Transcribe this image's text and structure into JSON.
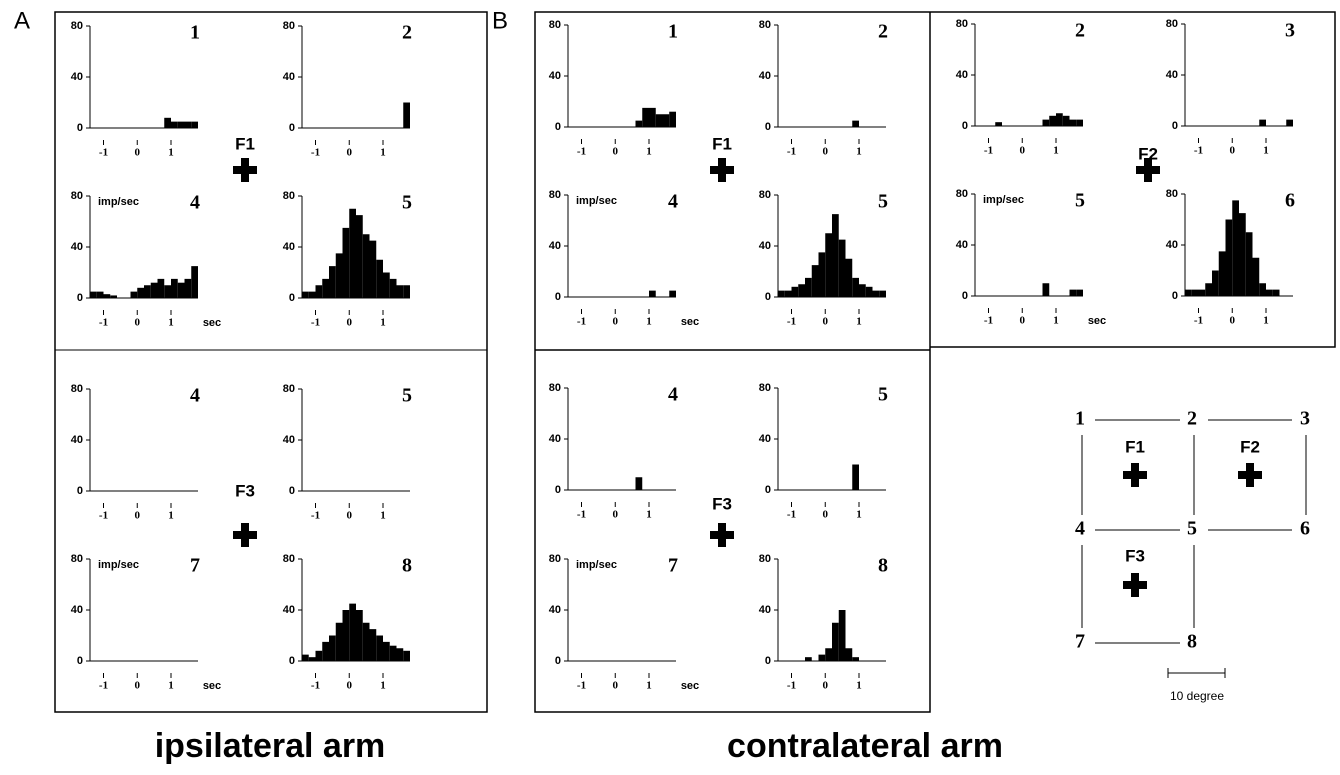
{
  "labels": [
    "A",
    "B"
  ],
  "captions": [
    "ipsilateral arm",
    "contralateral arm"
  ],
  "fixations": [
    "F1",
    "F3",
    "F1",
    "F3",
    "F2"
  ],
  "diagram": {
    "nodes": [
      "1",
      "2",
      "3",
      "4",
      "5",
      "6",
      "7",
      "8"
    ],
    "fixations": [
      "F1",
      "F2",
      "F3"
    ],
    "scale": "10 degree"
  },
  "chart_data": [
    {
      "type": "histogram",
      "title": "1",
      "color": "#000000",
      "xlim": [
        -1.4,
        1.8
      ],
      "ylim": [
        0,
        80
      ],
      "xticks": [
        -1,
        0,
        1
      ],
      "yticks": [
        0,
        40,
        80
      ],
      "bins": [
        -1.4,
        -1.2,
        -1.0,
        -0.8,
        -0.6,
        -0.4,
        -0.2,
        0,
        0.2,
        0.4,
        0.6,
        0.8,
        1.0,
        1.2,
        1.4,
        1.6,
        1.8
      ],
      "values": [
        0,
        0,
        0,
        0,
        0,
        0,
        0,
        0,
        0,
        0,
        0,
        8,
        5,
        5,
        5,
        5
      ]
    },
    {
      "type": "histogram",
      "title": "2",
      "color": "#000000",
      "xlim": [
        -1.4,
        1.8
      ],
      "ylim": [
        0,
        80
      ],
      "xticks": [
        -1,
        0,
        1
      ],
      "yticks": [
        0,
        40,
        80
      ],
      "bins": [
        -1.4,
        -1.2,
        -1.0,
        -0.8,
        -0.6,
        -0.4,
        -0.2,
        0,
        0.2,
        0.4,
        0.6,
        0.8,
        1.0,
        1.2,
        1.4,
        1.6,
        1.8
      ],
      "values": [
        0,
        0,
        0,
        0,
        0,
        0,
        0,
        0,
        0,
        0,
        0,
        0,
        0,
        0,
        0,
        20
      ]
    },
    {
      "type": "histogram",
      "title": "4",
      "ylabel": "imp/sec",
      "xlabel": "sec",
      "color": "#000000",
      "xlim": [
        -1.4,
        1.8
      ],
      "ylim": [
        0,
        80
      ],
      "xticks": [
        -1,
        0,
        1
      ],
      "yticks": [
        0,
        40,
        80
      ],
      "bins": [
        -1.4,
        -1.2,
        -1.0,
        -0.8,
        -0.6,
        -0.4,
        -0.2,
        0,
        0.2,
        0.4,
        0.6,
        0.8,
        1.0,
        1.2,
        1.4,
        1.6,
        1.8
      ],
      "values": [
        5,
        5,
        3,
        2,
        0,
        0,
        5,
        8,
        10,
        12,
        15,
        10,
        15,
        12,
        15,
        25
      ]
    },
    {
      "type": "histogram",
      "title": "5",
      "color": "#000000",
      "xlim": [
        -1.4,
        1.8
      ],
      "ylim": [
        0,
        80
      ],
      "xticks": [
        -1,
        0,
        1
      ],
      "yticks": [
        0,
        40,
        80
      ],
      "bins": [
        -1.4,
        -1.2,
        -1.0,
        -0.8,
        -0.6,
        -0.4,
        -0.2,
        0,
        0.2,
        0.4,
        0.6,
        0.8,
        1.0,
        1.2,
        1.4,
        1.6,
        1.8
      ],
      "values": [
        5,
        5,
        10,
        15,
        25,
        35,
        55,
        70,
        65,
        50,
        45,
        30,
        20,
        15,
        10,
        10
      ]
    },
    {
      "type": "histogram",
      "title": "4",
      "color": "#000000",
      "xlim": [
        -1.4,
        1.8
      ],
      "ylim": [
        0,
        80
      ],
      "xticks": [
        -1,
        0,
        1
      ],
      "yticks": [
        0,
        40,
        80
      ],
      "bins": [
        -1.4,
        -1.2,
        -1.0,
        -0.8,
        -0.6,
        -0.4,
        -0.2,
        0,
        0.2,
        0.4,
        0.6,
        0.8,
        1.0,
        1.2,
        1.4,
        1.6,
        1.8
      ],
      "values": [
        0,
        0,
        0,
        0,
        0,
        0,
        0,
        0,
        0,
        0,
        0,
        0,
        0,
        0,
        0,
        0
      ]
    },
    {
      "type": "histogram",
      "title": "5",
      "color": "#000000",
      "xlim": [
        -1.4,
        1.8
      ],
      "ylim": [
        0,
        80
      ],
      "xticks": [
        -1,
        0,
        1
      ],
      "yticks": [
        0,
        40,
        80
      ],
      "bins": [
        -1.4,
        -1.2,
        -1.0,
        -0.8,
        -0.6,
        -0.4,
        -0.2,
        0,
        0.2,
        0.4,
        0.6,
        0.8,
        1.0,
        1.2,
        1.4,
        1.6,
        1.8
      ],
      "values": [
        0,
        0,
        0,
        0,
        0,
        0,
        0,
        0,
        0,
        0,
        0,
        0,
        0,
        0,
        0,
        0
      ]
    },
    {
      "type": "histogram",
      "title": "7",
      "ylabel": "imp/sec",
      "xlabel": "sec",
      "color": "#000000",
      "xlim": [
        -1.4,
        1.8
      ],
      "ylim": [
        0,
        80
      ],
      "xticks": [
        -1,
        0,
        1
      ],
      "yticks": [
        0,
        40,
        80
      ],
      "bins": [
        -1.4,
        -1.2,
        -1.0,
        -0.8,
        -0.6,
        -0.4,
        -0.2,
        0,
        0.2,
        0.4,
        0.6,
        0.8,
        1.0,
        1.2,
        1.4,
        1.6,
        1.8
      ],
      "values": [
        0,
        0,
        0,
        0,
        0,
        0,
        0,
        0,
        0,
        0,
        0,
        0,
        0,
        0,
        0,
        0
      ]
    },
    {
      "type": "histogram",
      "title": "8",
      "color": "#000000",
      "xlim": [
        -1.4,
        1.8
      ],
      "ylim": [
        0,
        80
      ],
      "xticks": [
        -1,
        0,
        1
      ],
      "yticks": [
        0,
        40,
        80
      ],
      "bins": [
        -1.4,
        -1.2,
        -1.0,
        -0.8,
        -0.6,
        -0.4,
        -0.2,
        0,
        0.2,
        0.4,
        0.6,
        0.8,
        1.0,
        1.2,
        1.4,
        1.6,
        1.8
      ],
      "values": [
        5,
        3,
        8,
        15,
        20,
        30,
        40,
        45,
        40,
        30,
        25,
        20,
        15,
        12,
        10,
        8
      ]
    },
    {
      "type": "histogram",
      "title": "1",
      "color": "#000000",
      "xlim": [
        -1.4,
        1.8
      ],
      "ylim": [
        0,
        80
      ],
      "xticks": [
        -1,
        0,
        1
      ],
      "yticks": [
        0,
        40,
        80
      ],
      "bins": [
        -1.4,
        -1.2,
        -1.0,
        -0.8,
        -0.6,
        -0.4,
        -0.2,
        0,
        0.2,
        0.4,
        0.6,
        0.8,
        1.0,
        1.2,
        1.4,
        1.6,
        1.8
      ],
      "values": [
        0,
        0,
        0,
        0,
        0,
        0,
        0,
        0,
        0,
        0,
        5,
        15,
        15,
        10,
        10,
        12
      ]
    },
    {
      "type": "histogram",
      "title": "2",
      "color": "#000000",
      "xlim": [
        -1.4,
        1.8
      ],
      "ylim": [
        0,
        80
      ],
      "xticks": [
        -1,
        0,
        1
      ],
      "yticks": [
        0,
        40,
        80
      ],
      "bins": [
        -1.4,
        -1.2,
        -1.0,
        -0.8,
        -0.6,
        -0.4,
        -0.2,
        0,
        0.2,
        0.4,
        0.6,
        0.8,
        1.0,
        1.2,
        1.4,
        1.6,
        1.8
      ],
      "values": [
        0,
        0,
        0,
        0,
        0,
        0,
        0,
        0,
        0,
        0,
        0,
        5,
        0,
        0,
        0,
        0
      ]
    },
    {
      "type": "histogram",
      "title": "4",
      "ylabel": "imp/sec",
      "xlabel": "sec",
      "color": "#000000",
      "xlim": [
        -1.4,
        1.8
      ],
      "ylim": [
        0,
        80
      ],
      "xticks": [
        -1,
        0,
        1
      ],
      "yticks": [
        0,
        40,
        80
      ],
      "bins": [
        -1.4,
        -1.2,
        -1.0,
        -0.8,
        -0.6,
        -0.4,
        -0.2,
        0,
        0.2,
        0.4,
        0.6,
        0.8,
        1.0,
        1.2,
        1.4,
        1.6,
        1.8
      ],
      "values": [
        0,
        0,
        0,
        0,
        0,
        0,
        0,
        0,
        0,
        0,
        0,
        0,
        5,
        0,
        0,
        5
      ]
    },
    {
      "type": "histogram",
      "title": "5",
      "color": "#000000",
      "xlim": [
        -1.4,
        1.8
      ],
      "ylim": [
        0,
        80
      ],
      "xticks": [
        -1,
        0,
        1
      ],
      "yticks": [
        0,
        40,
        80
      ],
      "bins": [
        -1.4,
        -1.2,
        -1.0,
        -0.8,
        -0.6,
        -0.4,
        -0.2,
        0,
        0.2,
        0.4,
        0.6,
        0.8,
        1.0,
        1.2,
        1.4,
        1.6,
        1.8
      ],
      "values": [
        5,
        5,
        8,
        10,
        15,
        25,
        35,
        50,
        65,
        45,
        30,
        15,
        10,
        8,
        5,
        5
      ]
    },
    {
      "type": "histogram",
      "title": "4",
      "color": "#000000",
      "xlim": [
        -1.4,
        1.8
      ],
      "ylim": [
        0,
        80
      ],
      "xticks": [
        -1,
        0,
        1
      ],
      "yticks": [
        0,
        40,
        80
      ],
      "bins": [
        -1.4,
        -1.2,
        -1.0,
        -0.8,
        -0.6,
        -0.4,
        -0.2,
        0,
        0.2,
        0.4,
        0.6,
        0.8,
        1.0,
        1.2,
        1.4,
        1.6,
        1.8
      ],
      "values": [
        0,
        0,
        0,
        0,
        0,
        0,
        0,
        0,
        0,
        0,
        10,
        0,
        0,
        0,
        0,
        0
      ]
    },
    {
      "type": "histogram",
      "title": "5",
      "color": "#000000",
      "xlim": [
        -1.4,
        1.8
      ],
      "ylim": [
        0,
        80
      ],
      "xticks": [
        -1,
        0,
        1
      ],
      "yticks": [
        0,
        40,
        80
      ],
      "bins": [
        -1.4,
        -1.2,
        -1.0,
        -0.8,
        -0.6,
        -0.4,
        -0.2,
        0,
        0.2,
        0.4,
        0.6,
        0.8,
        1.0,
        1.2,
        1.4,
        1.6,
        1.8
      ],
      "values": [
        0,
        0,
        0,
        0,
        0,
        0,
        0,
        0,
        0,
        0,
        0,
        20,
        0,
        0,
        0,
        0
      ]
    },
    {
      "type": "histogram",
      "title": "7",
      "ylabel": "imp/sec",
      "xlabel": "sec",
      "color": "#000000",
      "xlim": [
        -1.4,
        1.8
      ],
      "ylim": [
        0,
        80
      ],
      "xticks": [
        -1,
        0,
        1
      ],
      "yticks": [
        0,
        40,
        80
      ],
      "bins": [
        -1.4,
        -1.2,
        -1.0,
        -0.8,
        -0.6,
        -0.4,
        -0.2,
        0,
        0.2,
        0.4,
        0.6,
        0.8,
        1.0,
        1.2,
        1.4,
        1.6,
        1.8
      ],
      "values": [
        0,
        0,
        0,
        0,
        0,
        0,
        0,
        0,
        0,
        0,
        0,
        0,
        0,
        0,
        0,
        0
      ]
    },
    {
      "type": "histogram",
      "title": "8",
      "color": "#000000",
      "xlim": [
        -1.4,
        1.8
      ],
      "ylim": [
        0,
        80
      ],
      "xticks": [
        -1,
        0,
        1
      ],
      "yticks": [
        0,
        40,
        80
      ],
      "bins": [
        -1.4,
        -1.2,
        -1.0,
        -0.8,
        -0.6,
        -0.4,
        -0.2,
        0,
        0.2,
        0.4,
        0.6,
        0.8,
        1.0,
        1.2,
        1.4,
        1.6,
        1.8
      ],
      "values": [
        0,
        0,
        0,
        0,
        3,
        0,
        5,
        10,
        30,
        40,
        10,
        3,
        0,
        0,
        0,
        0
      ]
    },
    {
      "type": "histogram",
      "title": "2",
      "color": "#000000",
      "xlim": [
        -1.4,
        1.8
      ],
      "ylim": [
        0,
        80
      ],
      "xticks": [
        -1,
        0,
        1
      ],
      "yticks": [
        0,
        40,
        80
      ],
      "bins": [
        -1.4,
        -1.2,
        -1.0,
        -0.8,
        -0.6,
        -0.4,
        -0.2,
        0,
        0.2,
        0.4,
        0.6,
        0.8,
        1.0,
        1.2,
        1.4,
        1.6,
        1.8
      ],
      "values": [
        0,
        0,
        0,
        3,
        0,
        0,
        0,
        0,
        0,
        0,
        5,
        8,
        10,
        8,
        5,
        5
      ]
    },
    {
      "type": "histogram",
      "title": "3",
      "color": "#000000",
      "xlim": [
        -1.4,
        1.8
      ],
      "ylim": [
        0,
        80
      ],
      "xticks": [
        -1,
        0,
        1
      ],
      "yticks": [
        0,
        40,
        80
      ],
      "bins": [
        -1.4,
        -1.2,
        -1.0,
        -0.8,
        -0.6,
        -0.4,
        -0.2,
        0,
        0.2,
        0.4,
        0.6,
        0.8,
        1.0,
        1.2,
        1.4,
        1.6,
        1.8
      ],
      "values": [
        0,
        0,
        0,
        0,
        0,
        0,
        0,
        0,
        0,
        0,
        0,
        5,
        0,
        0,
        0,
        5
      ]
    },
    {
      "type": "histogram",
      "title": "5",
      "ylabel": "imp/sec",
      "xlabel": "sec",
      "color": "#000000",
      "xlim": [
        -1.4,
        1.8
      ],
      "ylim": [
        0,
        80
      ],
      "xticks": [
        -1,
        0,
        1
      ],
      "yticks": [
        0,
        40,
        80
      ],
      "bins": [
        -1.4,
        -1.2,
        -1.0,
        -0.8,
        -0.6,
        -0.4,
        -0.2,
        0,
        0.2,
        0.4,
        0.6,
        0.8,
        1.0,
        1.2,
        1.4,
        1.6,
        1.8
      ],
      "values": [
        0,
        0,
        0,
        0,
        0,
        0,
        0,
        0,
        0,
        0,
        10,
        0,
        0,
        0,
        5,
        5
      ]
    },
    {
      "type": "histogram",
      "title": "6",
      "color": "#000000",
      "xlim": [
        -1.4,
        1.8
      ],
      "ylim": [
        0,
        80
      ],
      "xticks": [
        -1,
        0,
        1
      ],
      "yticks": [
        0,
        40,
        80
      ],
      "bins": [
        -1.4,
        -1.2,
        -1.0,
        -0.8,
        -0.6,
        -0.4,
        -0.2,
        0,
        0.2,
        0.4,
        0.6,
        0.8,
        1.0,
        1.2,
        1.4,
        1.6,
        1.8
      ],
      "values": [
        5,
        5,
        5,
        10,
        20,
        35,
        60,
        75,
        65,
        50,
        30,
        10,
        5,
        5,
        0,
        0
      ]
    }
  ]
}
